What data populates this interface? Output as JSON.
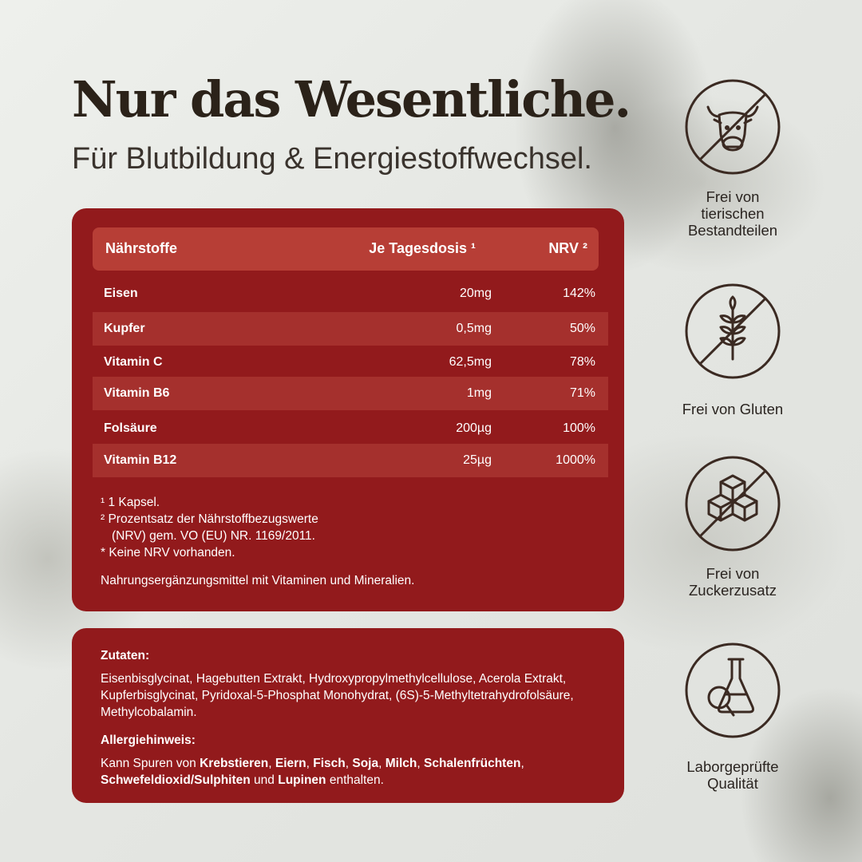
{
  "headline": "Nur das Wesentliche.",
  "subline": "Für Blutbildung & Energiestoffwechsel.",
  "colors": {
    "card": "#921a1c",
    "header": "#b73e36",
    "row_shade": "#a5302d",
    "icon_stroke": "#3b2a22"
  },
  "table": {
    "headers": {
      "nutrient": "Nährstoffe",
      "dose": "Je Tagesdosis ¹",
      "nrv": "NRV ²"
    },
    "rows": [
      {
        "name": "Eisen",
        "dose": "20mg",
        "nrv": "142%"
      },
      {
        "name": "Kupfer",
        "dose": "0,5mg",
        "nrv": "50%"
      },
      {
        "name": "Vitamin C",
        "dose": "62,5mg",
        "nrv": "78%"
      },
      {
        "name": "Vitamin B6",
        "dose": "1mg",
        "nrv": "71%"
      },
      {
        "name": "Folsäure",
        "dose": "200µg",
        "nrv": "100%"
      },
      {
        "name": "Vitamin B12",
        "dose": "25µg",
        "nrv": "1000%"
      }
    ]
  },
  "notes": {
    "n1": "¹ 1 Kapsel.",
    "n2a": "² Prozentsatz der Nährstoffbezugswerte",
    "n2b": "(NRV) gem. VO (EU) NR. 1169/2011.",
    "n3": "* Keine NRV vorhanden.",
    "n4": "Nahrungsergänzungsmittel mit Vitaminen und Mineralien."
  },
  "ingredients": {
    "title": "Zutaten:",
    "text": "Eisenbisglycinat, Hagebutten Extrakt, Hydroxypropylmethylcellulose, Acerola Extrakt, Kupferbisglycinat, Pyridoxal-5-Phosphat Monohydrat, (6S)-5-Methyltetrahydrofolsäure, Methylcobalamin."
  },
  "allergy": {
    "title": "Allergiehinweis:",
    "prefix": "Kann Spuren von ",
    "items": [
      "Krebstieren",
      "Eiern",
      "Fisch",
      "Soja",
      "Milch",
      "Schalenfrüchten",
      "Schwefeldioxid/Sulphiten"
    ],
    "and": " und ",
    "last": "Lupinen",
    "suffix": " enthalten."
  },
  "badges": [
    {
      "icon": "no-animal-icon",
      "line1": "Frei von",
      "line2": "tierischen",
      "line3": "Bestandteilen"
    },
    {
      "icon": "no-gluten-icon",
      "line1": "Frei von Gluten"
    },
    {
      "icon": "no-sugar-icon",
      "line1": "Frei von",
      "line2": "Zuckerzusatz"
    },
    {
      "icon": "lab-tested-icon",
      "line1": "Laborgeprüfte",
      "line2": "Qualität"
    }
  ]
}
